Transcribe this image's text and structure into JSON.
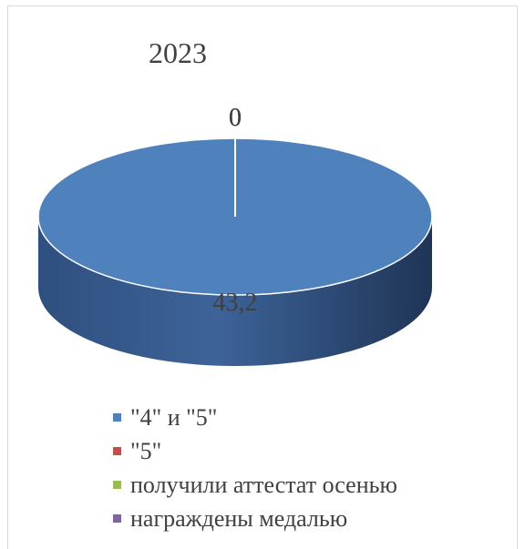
{
  "chart_data": {
    "type": "pie",
    "title": "2023",
    "categories": [
      "\"4\" и \"5\"",
      "\"5\"",
      "получили аттестат осенью",
      "награждены медалью"
    ],
    "values": [
      43.2,
      0,
      0,
      0
    ],
    "data_labels": [
      "43,2",
      "0",
      "0",
      "0"
    ],
    "colors": [
      "#4f81bd",
      "#c0504d",
      "#9bbb59",
      "#8064a2"
    ],
    "legend_position": "bottom",
    "three_d": true
  }
}
